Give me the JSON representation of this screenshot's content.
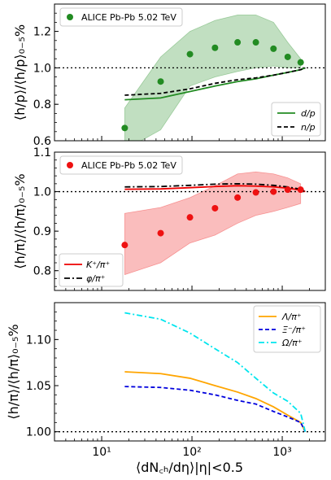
{
  "chart_data": [
    {
      "type": "line",
      "panel": "top",
      "xscale": "log",
      "xlim": [
        3,
        3000
      ],
      "ylim": [
        0.6,
        1.35
      ],
      "yticks": [
        "0.6",
        "0.8",
        "1.0",
        "1.2"
      ],
      "ylabel": "⟨h/p⟩/⟨h/p⟩₀₋₅%",
      "reference_line": 1.0,
      "legend_data": "ALICE Pb-Pb 5.02 TeV",
      "data_points": {
        "name": "ALICE Pb-Pb 5.02 TeV",
        "color": "#228b22",
        "x": [
          18,
          45,
          95,
          180,
          320,
          510,
          800,
          1150,
          1600
        ],
        "y": [
          0.67,
          0.925,
          1.075,
          1.11,
          1.14,
          1.14,
          1.105,
          1.06,
          1.03
        ],
        "band_low": [
          0.55,
          0.66,
          0.9,
          0.95,
          0.98,
          1.0,
          1.01,
          1.0,
          1.0
        ],
        "band_high": [
          0.78,
          1.06,
          1.2,
          1.26,
          1.29,
          1.29,
          1.25,
          1.14,
          1.05
        ]
      },
      "series": [
        {
          "name": "d/p",
          "color": "#228b22",
          "dash": "solid",
          "x": [
            18,
            45,
            95,
            180,
            320,
            510,
            800,
            1150,
            1600,
            1800
          ],
          "y": [
            0.825,
            0.835,
            0.87,
            0.9,
            0.925,
            0.94,
            0.96,
            0.975,
            0.99,
            1.0
          ]
        },
        {
          "name": "n/p",
          "color": "#000000",
          "dash": "dashed",
          "x": [
            18,
            45,
            95,
            180,
            320,
            510,
            800,
            1150,
            1600,
            1800
          ],
          "y": [
            0.85,
            0.86,
            0.885,
            0.915,
            0.935,
            0.945,
            0.96,
            0.975,
            0.99,
            1.0
          ]
        }
      ],
      "legend_labels": [
        "d/p",
        "n/p"
      ]
    },
    {
      "type": "line",
      "panel": "middle",
      "xscale": "log",
      "xlim": [
        3,
        3000
      ],
      "ylim": [
        0.75,
        1.1
      ],
      "yticks": [
        "0.8",
        "0.9",
        "1.0",
        "1.1"
      ],
      "ylabel": "⟨h/π⟩/⟨h/π⟩₀₋₅%",
      "reference_line": 1.0,
      "legend_data": "ALICE Pb-Pb 5.02 TeV",
      "data_points": {
        "name": "ALICE Pb-Pb 5.02 TeV",
        "color": "#ee1111",
        "x": [
          18,
          45,
          95,
          180,
          320,
          510,
          800,
          1150,
          1600
        ],
        "y": [
          0.865,
          0.895,
          0.935,
          0.958,
          0.985,
          0.998,
          1.0,
          1.005,
          1.005
        ],
        "band_low": [
          0.79,
          0.82,
          0.87,
          0.89,
          0.92,
          0.94,
          0.95,
          0.96,
          0.97
        ],
        "band_high": [
          0.945,
          0.96,
          0.985,
          1.015,
          1.045,
          1.05,
          1.045,
          1.035,
          1.02
        ]
      },
      "series": [
        {
          "name": "K⁺/π⁺",
          "color": "#ee0000",
          "dash": "solid",
          "x": [
            18,
            45,
            95,
            180,
            320,
            510,
            800,
            1150,
            1600,
            1800
          ],
          "y": [
            1.006,
            1.007,
            1.01,
            1.013,
            1.015,
            1.014,
            1.012,
            1.009,
            1.004,
            1.0
          ]
        },
        {
          "name": "φ/π⁺",
          "color": "#000000",
          "dash": "dashdot",
          "x": [
            18,
            45,
            95,
            180,
            320,
            510,
            800,
            1150,
            1600,
            1800
          ],
          "y": [
            1.012,
            1.013,
            1.016,
            1.019,
            1.02,
            1.019,
            1.016,
            1.012,
            1.006,
            1.0
          ]
        }
      ],
      "legend_labels": [
        "K⁺/π⁺",
        "φ/π⁺"
      ]
    },
    {
      "type": "line",
      "panel": "bottom",
      "xscale": "log",
      "xlim": [
        3,
        3000
      ],
      "ylim": [
        0.99,
        1.14
      ],
      "yticks": [
        "1.00",
        "1.05",
        "1.10"
      ],
      "xticks": [
        "10¹",
        "10²",
        "10³"
      ],
      "ylabel": "⟨h/π⟩/⟨h/π⟩₀₋₅%",
      "xlabel": "⟨dN꜀ₕ/dη⟩|η|<0.5",
      "reference_line": 1.0,
      "series": [
        {
          "name": "Λ/π⁺",
          "color": "#ffa500",
          "dash": "solid",
          "x": [
            18,
            45,
            95,
            180,
            320,
            510,
            800,
            1150,
            1600,
            1800
          ],
          "y": [
            1.065,
            1.063,
            1.058,
            1.05,
            1.043,
            1.036,
            1.027,
            1.018,
            1.01,
            1.0
          ]
        },
        {
          "name": "Ξ⁻/π⁺",
          "color": "#0000dd",
          "dash": "dashed",
          "x": [
            18,
            45,
            95,
            180,
            320,
            510,
            800,
            1150,
            1600,
            1800
          ],
          "y": [
            1.049,
            1.048,
            1.045,
            1.04,
            1.034,
            1.03,
            1.022,
            1.016,
            1.01,
            1.0
          ]
        },
        {
          "name": "Ω/π⁺",
          "color": "#00e5ee",
          "dash": "dashdot",
          "x": [
            18,
            45,
            95,
            180,
            320,
            510,
            800,
            1150,
            1600,
            1800
          ],
          "y": [
            1.129,
            1.122,
            1.107,
            1.09,
            1.075,
            1.058,
            1.042,
            1.033,
            1.02,
            1.0
          ]
        }
      ],
      "legend_labels": [
        "Λ/π⁺",
        "Ξ⁻/π⁺",
        "Ω/π⁺"
      ]
    }
  ]
}
